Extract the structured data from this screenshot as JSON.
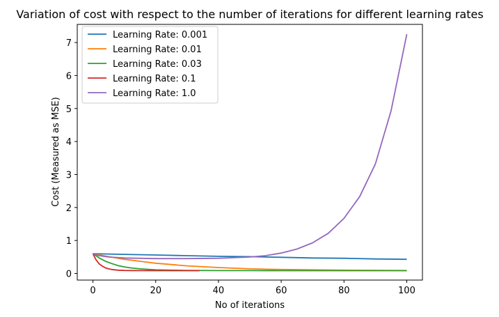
{
  "chart_data": {
    "type": "line",
    "title": "Variation of cost with respect to the number of iterations for different learning rates",
    "xlabel": "No of iterations",
    "ylabel": "Cost (Measured as MSE)",
    "xlim": [
      -5,
      105
    ],
    "ylim": [
      -0.2,
      7.55
    ],
    "xticks": [
      0,
      20,
      40,
      60,
      80,
      100
    ],
    "yticks": [
      0,
      1,
      2,
      3,
      4,
      5,
      6,
      7
    ],
    "legend_position": "top-left",
    "grid": false,
    "series": [
      {
        "name": "Learning Rate: 0.001",
        "color": "#1f77b4",
        "x": [
          0,
          10,
          20,
          30,
          40,
          50,
          60,
          70,
          80,
          90,
          100
        ],
        "y": [
          0.6,
          0.58,
          0.56,
          0.54,
          0.52,
          0.51,
          0.49,
          0.47,
          0.46,
          0.44,
          0.43
        ]
      },
      {
        "name": "Learning Rate: 0.01",
        "color": "#ff7f0e",
        "x": [
          0,
          5,
          10,
          15,
          20,
          25,
          30,
          40,
          50,
          60,
          70,
          80,
          90,
          100
        ],
        "y": [
          0.6,
          0.51,
          0.43,
          0.37,
          0.31,
          0.27,
          0.23,
          0.18,
          0.14,
          0.12,
          0.11,
          0.1,
          0.095,
          0.09
        ]
      },
      {
        "name": "Learning Rate: 0.03",
        "color": "#2ca02c",
        "x": [
          0,
          2,
          4,
          6,
          8,
          10,
          12,
          15,
          20,
          25,
          30,
          40,
          50,
          60,
          80,
          100
        ],
        "y": [
          0.6,
          0.47,
          0.37,
          0.3,
          0.24,
          0.2,
          0.17,
          0.14,
          0.11,
          0.1,
          0.093,
          0.088,
          0.087,
          0.086,
          0.085,
          0.085
        ]
      },
      {
        "name": "Learning Rate: 0.1",
        "color": "#d62728",
        "x": [
          0,
          1,
          2,
          3,
          4,
          5,
          6,
          8,
          10,
          12,
          15,
          20,
          25,
          30,
          34
        ],
        "y": [
          0.6,
          0.41,
          0.29,
          0.22,
          0.17,
          0.14,
          0.12,
          0.1,
          0.092,
          0.089,
          0.087,
          0.086,
          0.085,
          0.085,
          0.085
        ]
      },
      {
        "name": "Learning Rate: 1.0",
        "color": "#9467bd",
        "x": [
          0,
          2,
          5,
          10,
          20,
          30,
          40,
          50,
          55,
          60,
          65,
          70,
          75,
          80,
          85,
          90,
          95,
          100
        ],
        "y": [
          0.6,
          0.54,
          0.5,
          0.47,
          0.45,
          0.45,
          0.46,
          0.5,
          0.54,
          0.62,
          0.74,
          0.93,
          1.22,
          1.67,
          2.33,
          3.32,
          4.93,
          7.25
        ]
      }
    ]
  }
}
